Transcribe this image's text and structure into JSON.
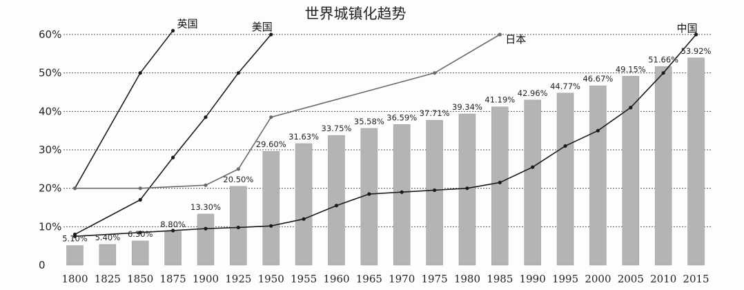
{
  "chart_data": {
    "type": "bar",
    "title": "世界城镇化趋势",
    "ylim": [
      0,
      60
    ],
    "yticks": [
      {
        "value": 0,
        "label": "0"
      },
      {
        "value": 10,
        "label": "10%"
      },
      {
        "value": 20,
        "label": "20%"
      },
      {
        "value": 30,
        "label": "30%"
      },
      {
        "value": 40,
        "label": "40%"
      },
      {
        "value": 50,
        "label": "50%"
      },
      {
        "value": 60,
        "label": "60%"
      }
    ],
    "grid": true,
    "categories": [
      "1800",
      "1825",
      "1850",
      "1875",
      "1900",
      "1925",
      "1950",
      "1955",
      "1960",
      "1965",
      "1970",
      "1975",
      "1980",
      "1985",
      "1990",
      "1995",
      "2000",
      "2005",
      "2010",
      "2015"
    ],
    "bars": {
      "values": [
        5.1,
        5.4,
        6.3,
        8.8,
        13.3,
        20.5,
        29.6,
        31.63,
        33.75,
        35.58,
        36.59,
        37.71,
        39.34,
        41.19,
        42.96,
        44.77,
        46.67,
        49.15,
        51.66,
        53.92
      ],
      "labels": [
        "5.10%",
        "5.40%",
        "6.30%",
        "8.80%",
        "13.30%",
        "20.50%",
        "29.60%",
        "31.63%",
        "33.75%",
        "35.58%",
        "36.59%",
        "37.71%",
        "39.34%",
        "41.19%",
        "42.96%",
        "44.77%",
        "46.67%",
        "49.15%",
        "51.66%",
        "53.92%"
      ],
      "color": "#b4b4b4"
    },
    "series": [
      {
        "name": "英国",
        "color": "#1a1a1a",
        "points": [
          {
            "x": "1800",
            "y": 20
          },
          {
            "x": "1850",
            "y": 50
          },
          {
            "x": "1875",
            "y": 61
          }
        ]
      },
      {
        "name": "美国",
        "color": "#1a1a1a",
        "points": [
          {
            "x": "1800",
            "y": 8
          },
          {
            "x": "1850",
            "y": 17
          },
          {
            "x": "1875",
            "y": 28
          },
          {
            "x": "1900",
            "y": 38.5
          },
          {
            "x": "1925",
            "y": 50
          },
          {
            "x": "1950",
            "y": 60
          }
        ]
      },
      {
        "name": "日本",
        "color": "#6a6a6a",
        "points": [
          {
            "x": "1800",
            "y": 20
          },
          {
            "x": "1850",
            "y": 20
          },
          {
            "x": "1900",
            "y": 20.8
          },
          {
            "x": "1925",
            "y": 25
          },
          {
            "x": "1950",
            "y": 38.5
          },
          {
            "x": "1975",
            "y": 50
          },
          {
            "x": "1985",
            "y": 60
          }
        ]
      },
      {
        "name": "中国",
        "color": "#1a1a1a",
        "points": [
          {
            "x": "1800",
            "y": 7.5
          },
          {
            "x": "1850",
            "y": 8.5
          },
          {
            "x": "1875",
            "y": 9
          },
          {
            "x": "1900",
            "y": 9.5
          },
          {
            "x": "1925",
            "y": 9.8
          },
          {
            "x": "1950",
            "y": 10.2
          },
          {
            "x": "1955",
            "y": 12
          },
          {
            "x": "1960",
            "y": 15.5
          },
          {
            "x": "1965",
            "y": 18.5
          },
          {
            "x": "1970",
            "y": 19
          },
          {
            "x": "1975",
            "y": 19.5
          },
          {
            "x": "1980",
            "y": 20
          },
          {
            "x": "1985",
            "y": 21.5
          },
          {
            "x": "1990",
            "y": 25.5
          },
          {
            "x": "1995",
            "y": 31
          },
          {
            "x": "2000",
            "y": 35
          },
          {
            "x": "2005",
            "y": 41
          },
          {
            "x": "2010",
            "y": 50
          },
          {
            "x": "2015",
            "y": 60
          }
        ]
      }
    ]
  }
}
